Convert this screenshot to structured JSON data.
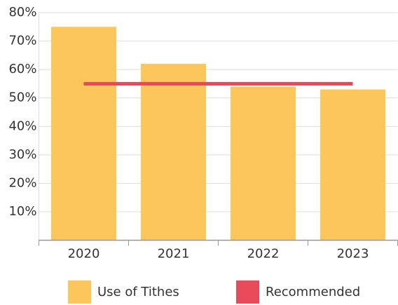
{
  "chart_data": {
    "type": "bar",
    "categories": [
      "2020",
      "2021",
      "2022",
      "2023"
    ],
    "series": [
      {
        "name": "Use of Tithes",
        "type": "bar",
        "color": "#fcc65a",
        "values": [
          75,
          62,
          54,
          53
        ]
      },
      {
        "name": "Recommended",
        "type": "line",
        "color": "#e84a5a",
        "values": [
          55,
          55,
          55,
          55
        ]
      }
    ],
    "ylim": [
      0,
      80
    ],
    "yticks": [
      {
        "value": 10,
        "label": "10%"
      },
      {
        "value": 20,
        "label": "20%"
      },
      {
        "value": 30,
        "label": "30%"
      },
      {
        "value": 40,
        "label": "40%"
      },
      {
        "value": 50,
        "label": "50%"
      },
      {
        "value": 60,
        "label": "60%"
      },
      {
        "value": 70,
        "label": "70%"
      },
      {
        "value": 80,
        "label": "80%"
      }
    ],
    "grid": true,
    "legend": "bottom"
  }
}
